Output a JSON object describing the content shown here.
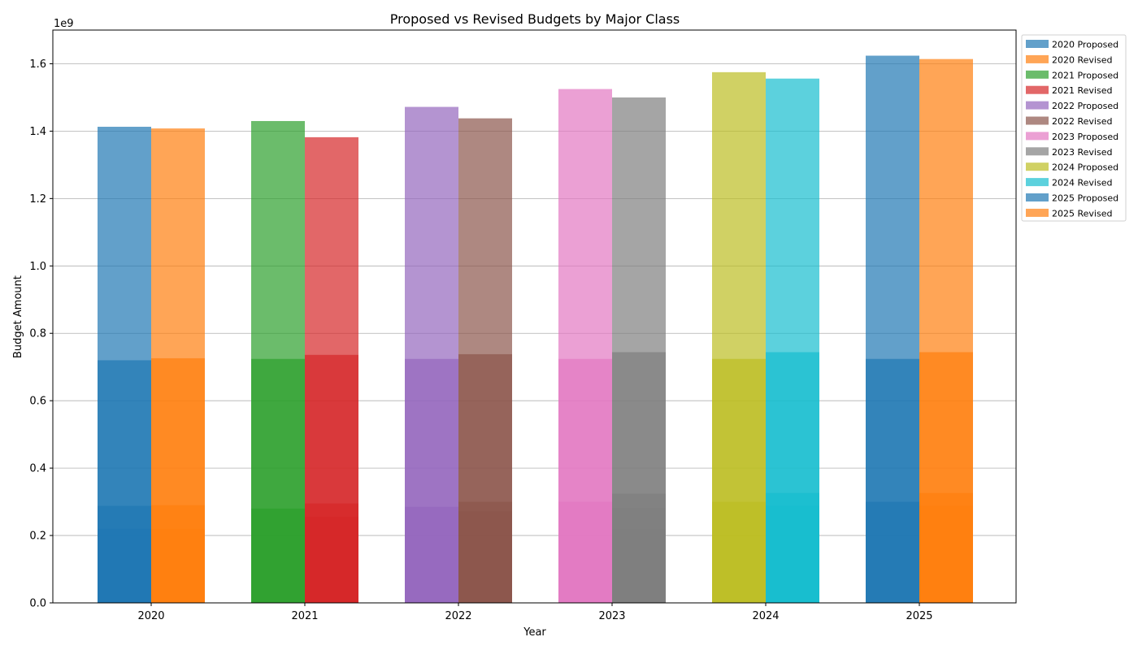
{
  "chart_data": {
    "type": "bar",
    "title": "Proposed vs Revised Budgets by Major Class",
    "xlabel": "Year",
    "ylabel": "Budget Amount",
    "y_offset_text": "1e9",
    "ylim": [
      0,
      1.7
    ],
    "yticks": [
      "0.0",
      "0.2",
      "0.4",
      "0.6",
      "0.8",
      "1.0",
      "1.2",
      "1.4",
      "1.6"
    ],
    "categories": [
      "2020",
      "2021",
      "2022",
      "2023",
      "2024",
      "2025"
    ],
    "grid": "horizontal",
    "legend_position": "outside-top-right",
    "value_unit": "1e9",
    "series": [
      {
        "name": "2020 Proposed",
        "year": "2020",
        "kind": "Proposed",
        "color": "#1f77b4",
        "layers": [
          0.22,
          0.288,
          0.72,
          1.413
        ]
      },
      {
        "name": "2020 Revised",
        "year": "2020",
        "kind": "Revised",
        "color": "#ff7f0e",
        "layers": [
          0.22,
          0.29,
          0.726,
          1.408
        ]
      },
      {
        "name": "2021 Proposed",
        "year": "2021",
        "kind": "Proposed",
        "color": "#2ca02c",
        "layers": [
          0.28,
          0.724,
          1.43
        ]
      },
      {
        "name": "2021 Revised",
        "year": "2021",
        "kind": "Revised",
        "color": "#d62728",
        "layers": [
          0.255,
          0.295,
          0.736,
          1.382
        ]
      },
      {
        "name": "2022 Proposed",
        "year": "2022",
        "kind": "Proposed",
        "color": "#9467bd",
        "layers": [
          0.285,
          0.724,
          1.472
        ]
      },
      {
        "name": "2022 Revised",
        "year": "2022",
        "kind": "Revised",
        "color": "#8c564b",
        "layers": [
          0.272,
          0.3,
          0.738,
          1.438
        ]
      },
      {
        "name": "2023 Proposed",
        "year": "2023",
        "kind": "Proposed",
        "color": "#e377c2",
        "layers": [
          0.3,
          0.724,
          1.525
        ]
      },
      {
        "name": "2023 Revised",
        "year": "2023",
        "kind": "Revised",
        "color": "#7f7f7f",
        "layers": [
          0.22,
          0.282,
          0.324,
          0.744,
          1.5
        ]
      },
      {
        "name": "2024 Proposed",
        "year": "2024",
        "kind": "Proposed",
        "color": "#bcbd22",
        "layers": [
          0.3,
          0.724,
          1.575
        ]
      },
      {
        "name": "2024 Revised",
        "year": "2024",
        "kind": "Revised",
        "color": "#17becf",
        "layers": [
          0.288,
          0.326,
          0.744,
          1.556
        ]
      },
      {
        "name": "2025 Proposed",
        "year": "2025",
        "kind": "Proposed",
        "color": "#1f77b4",
        "layers": [
          0.3,
          0.724,
          1.624
        ]
      },
      {
        "name": "2025 Revised",
        "year": "2025",
        "kind": "Revised",
        "color": "#ff7f0e",
        "layers": [
          0.288,
          0.326,
          0.744,
          1.614
        ]
      }
    ]
  }
}
